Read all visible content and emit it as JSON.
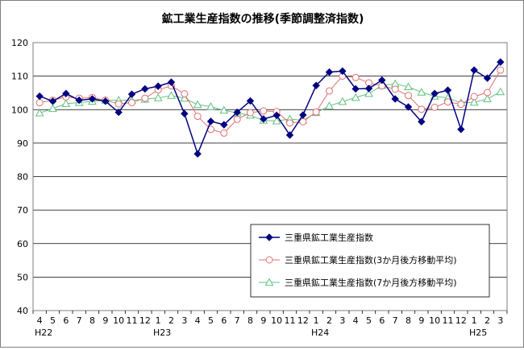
{
  "chart_data": {
    "type": "line",
    "title": "鉱工業生産指数の推移(季節調整済指数)",
    "xlabel": "",
    "ylabel": "",
    "ylim": [
      40,
      120
    ],
    "yticks": [
      40,
      50,
      60,
      70,
      80,
      90,
      100,
      110,
      120
    ],
    "grid": true,
    "legend_position": "bottom-right",
    "x": [
      "4",
      "5",
      "6",
      "7",
      "8",
      "9",
      "10",
      "11",
      "12",
      "1",
      "2",
      "3",
      "4",
      "5",
      "6",
      "7",
      "8",
      "9",
      "10",
      "11",
      "12",
      "1",
      "2",
      "3",
      "4",
      "5",
      "6",
      "7",
      "8",
      "9",
      "10",
      "11",
      "12",
      "1",
      "2",
      "3"
    ],
    "year_labels": [
      {
        "index": 0,
        "label": "H22"
      },
      {
        "index": 9,
        "label": "H23"
      },
      {
        "index": 21,
        "label": "H24"
      },
      {
        "index": 33,
        "label": "H25"
      }
    ],
    "series": [
      {
        "name": "三重県鉱工業生産指数",
        "color": "#000080",
        "marker": "diamond",
        "values": [
          104,
          102.5,
          104.8,
          102.8,
          103.2,
          102.5,
          99.2,
          104.6,
          106.2,
          107,
          108.2,
          98.8,
          86.8,
          96.5,
          95.5,
          99.2,
          102.6,
          97.2,
          98.3,
          92.4,
          98.4,
          107.2,
          111.2,
          111.5,
          106.2,
          106.3,
          108.8,
          103.2,
          100.8,
          96.4,
          104.8,
          105.8,
          94.1,
          111.8,
          109.4,
          114.2
        ]
      },
      {
        "name": "三重県鉱工業生産指数(3か月後方移動平均)",
        "color": "#e07070",
        "marker": "circle",
        "values": [
          102.1,
          102.8,
          103.8,
          103.4,
          103.6,
          102.8,
          101.7,
          102.1,
          103.4,
          105.9,
          107.1,
          104.7,
          98,
          94.1,
          93,
          97.1,
          99.1,
          99.6,
          99.4,
          96,
          96.4,
          99.3,
          105.6,
          110,
          109.6,
          108,
          107.1,
          106.1,
          104.2,
          100.1,
          100.7,
          102.3,
          101.6,
          103.9,
          105.1,
          111.8
        ]
      },
      {
        "name": "三重県鉱工業生産指数(7か月後方移動平均)",
        "color": "#60c080",
        "marker": "triangle",
        "values": [
          99,
          100.3,
          101.8,
          102.1,
          102.5,
          102.8,
          102.8,
          102.8,
          103.1,
          103.5,
          104.2,
          103.4,
          101.5,
          100.9,
          99.8,
          99,
          98.3,
          96.8,
          96.6,
          97.2,
          96.8,
          99.1,
          101.1,
          102.4,
          103.6,
          104.8,
          107.2,
          107.7,
          106.8,
          105.2,
          104,
          103.5,
          102,
          102.2,
          103.2,
          105.3
        ]
      }
    ]
  }
}
